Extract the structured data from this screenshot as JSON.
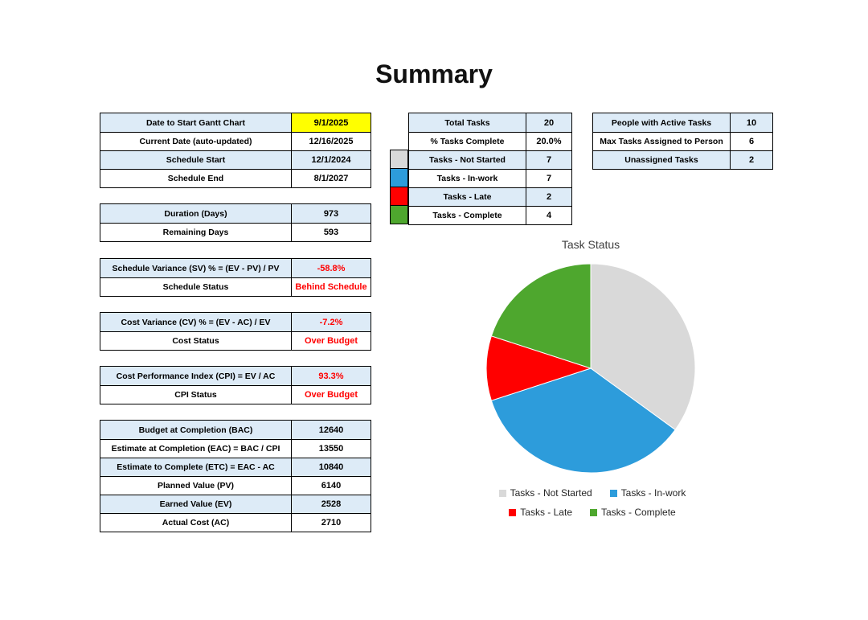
{
  "title": "Summary",
  "colors": {
    "row_alt_blue": "#DDEBF7",
    "highlight_yellow": "#FFFF00",
    "alert_red": "#FF0000",
    "pie_gray": "#D9D9D9",
    "pie_blue": "#2D9CDB",
    "pie_red": "#FF0000",
    "pie_green": "#4EA72E"
  },
  "left_tables": [
    {
      "id": "dates",
      "rows": [
        {
          "label": "Date to Start Gantt Chart",
          "value": "9/1/2025",
          "value_style": "yellow"
        },
        {
          "label": "Current Date (auto-updated)",
          "value": "12/16/2025"
        },
        {
          "label": "Schedule Start",
          "value": "12/1/2024"
        },
        {
          "label": "Schedule End",
          "value": "8/1/2027"
        }
      ]
    },
    {
      "id": "duration",
      "rows": [
        {
          "label": "Duration (Days)",
          "value": "973"
        },
        {
          "label": "Remaining Days",
          "value": "593"
        }
      ]
    },
    {
      "id": "schedule-variance",
      "rows": [
        {
          "label": "Schedule Variance (SV) %  = (EV - PV) / PV",
          "value": "-58.8%",
          "value_style": "red"
        },
        {
          "label": "Schedule Status",
          "value": "Behind Schedule",
          "value_style": "red"
        }
      ]
    },
    {
      "id": "cost-variance",
      "rows": [
        {
          "label": "Cost Variance (CV) %  = (EV - AC) / EV",
          "value": "-7.2%",
          "value_style": "red"
        },
        {
          "label": "Cost Status",
          "value": "Over Budget",
          "value_style": "red"
        }
      ]
    },
    {
      "id": "cpi",
      "rows": [
        {
          "label": "Cost Performance Index (CPI) = EV / AC",
          "value": "93.3%",
          "value_style": "red"
        },
        {
          "label": "CPI Status",
          "value": "Over Budget",
          "value_style": "red"
        }
      ]
    },
    {
      "id": "evm",
      "rows": [
        {
          "label": "Budget at Completion (BAC)",
          "value": "12640"
        },
        {
          "label": "Estimate at Completion (EAC) = BAC / CPI",
          "value": "13550"
        },
        {
          "label": "Estimate to Complete (ETC) = EAC - AC",
          "value": "10840"
        },
        {
          "label": "Planned Value (PV)",
          "value": "6140"
        },
        {
          "label": "Earned Value (EV)",
          "value": "2528"
        },
        {
          "label": "Actual Cost (AC)",
          "value": "2710"
        }
      ]
    }
  ],
  "task_table": {
    "rows": [
      {
        "label": "Total Tasks",
        "value": "20"
      },
      {
        "label": "% Tasks Complete",
        "value": "20.0%"
      },
      {
        "label": "Tasks - Not Started",
        "value": "7",
        "swatch": "#D9D9D9"
      },
      {
        "label": "Tasks - In-work",
        "value": "7",
        "swatch": "#2D9CDB"
      },
      {
        "label": "Tasks - Late",
        "value": "2",
        "swatch": "#FF0000"
      },
      {
        "label": "Tasks - Complete",
        "value": "4",
        "swatch": "#4EA72E"
      }
    ]
  },
  "people_table": {
    "rows": [
      {
        "label": "People with Active Tasks",
        "value": "10"
      },
      {
        "label": "Max Tasks Assigned to Person",
        "value": "6"
      },
      {
        "label": "Unassigned Tasks",
        "value": "2"
      }
    ]
  },
  "chart_data": {
    "type": "pie",
    "title": "Task Status",
    "labels": [
      "Tasks - Not Started",
      "Tasks - In-work",
      "Tasks - Late",
      "Tasks - Complete"
    ],
    "values": [
      7,
      7,
      2,
      4
    ],
    "colors": [
      "#D9D9D9",
      "#2D9CDB",
      "#FF0000",
      "#4EA72E"
    ],
    "total": 20,
    "start_angle_deg": 0,
    "direction": "clockwise",
    "legend_position": "bottom"
  }
}
